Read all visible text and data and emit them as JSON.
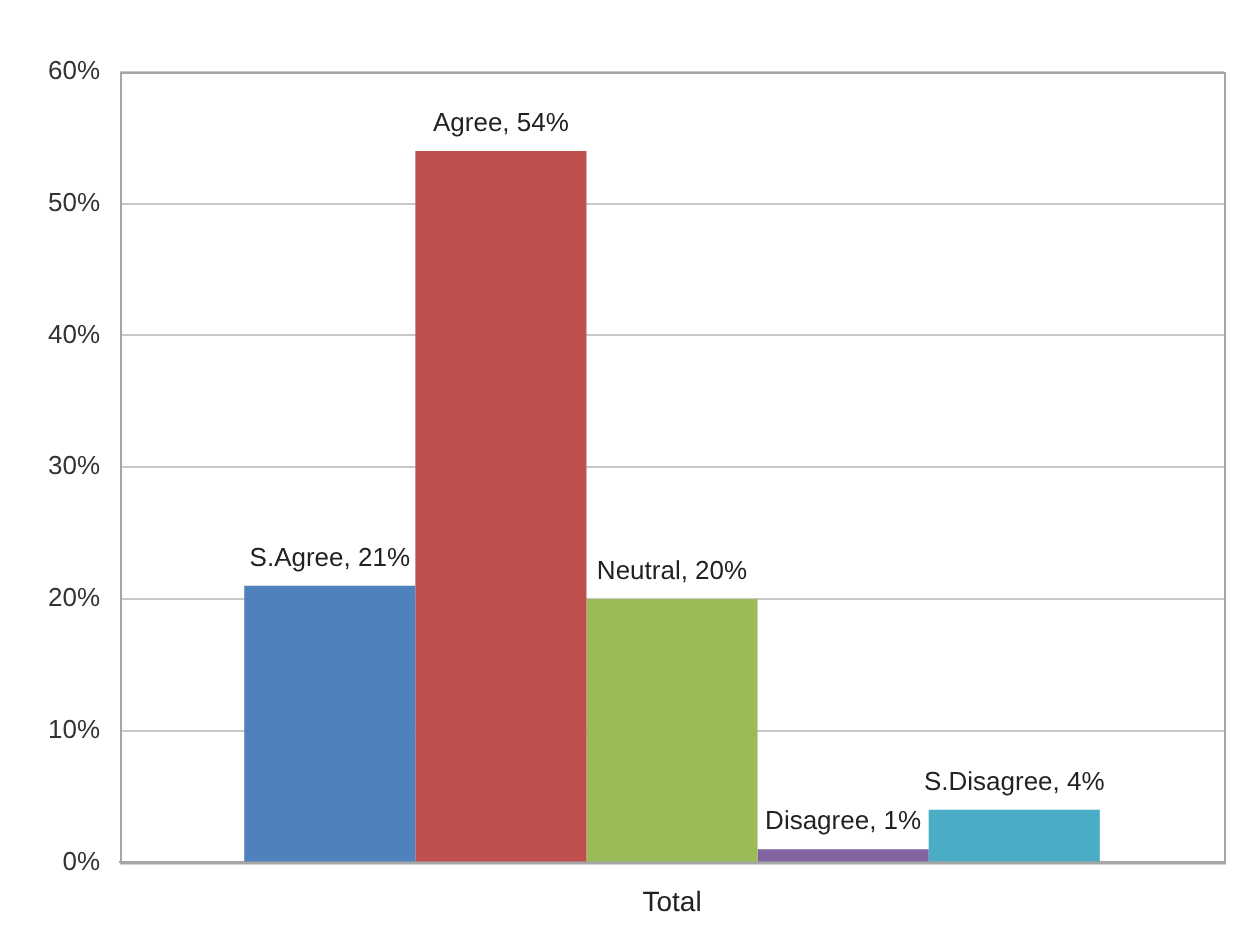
{
  "chart_data": {
    "type": "bar",
    "categories": [
      "Total"
    ],
    "series": [
      {
        "name": "S.Agree",
        "color": "#4f81bd",
        "values": [
          21
        ],
        "value_labels": [
          ", 21%"
        ]
      },
      {
        "name": "Agree",
        "color": "#c0504d",
        "values": [
          54
        ],
        "value_labels": [
          ", 54%"
        ]
      },
      {
        "name": "Neutral",
        "color": "#9bbb59",
        "values": [
          20
        ],
        "value_labels": [
          ", 20%"
        ]
      },
      {
        "name": "Disagree",
        "color": "#8064a2",
        "values": [
          1
        ],
        "value_labels": [
          ", 1%"
        ]
      },
      {
        "name": "S.Disagree",
        "color": "#4bacc6",
        "values": [
          4
        ],
        "value_labels": [
          ", 4%"
        ]
      }
    ],
    "ylim": [
      0,
      60
    ],
    "yticks": [
      {
        "value": 0,
        "label": "0%"
      },
      {
        "value": 10,
        "label": "10%"
      },
      {
        "value": 20,
        "label": "20%"
      },
      {
        "value": 30,
        "label": "30%"
      },
      {
        "value": 40,
        "label": "40%"
      },
      {
        "value": 50,
        "label": "50%"
      },
      {
        "value": 60,
        "label": "60%"
      }
    ],
    "grid": "y",
    "legend": false
  }
}
